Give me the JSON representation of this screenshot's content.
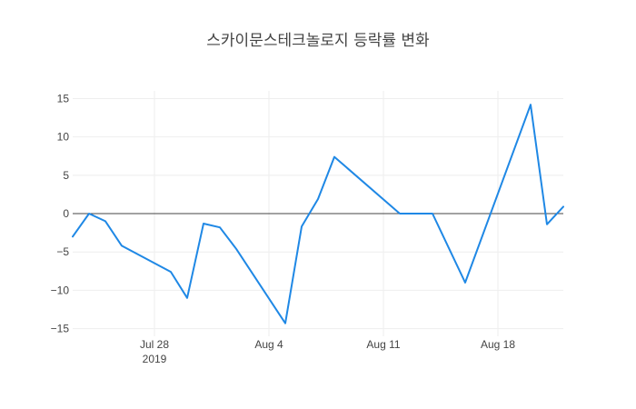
{
  "chart_data": {
    "type": "line",
    "title": "스카이문스테크놀로지 등락률 변화",
    "xlabel": "",
    "ylabel": "",
    "x": [
      "2019-07-23",
      "2019-07-24",
      "2019-07-25",
      "2019-07-26",
      "2019-07-29",
      "2019-07-30",
      "2019-07-31",
      "2019-08-01",
      "2019-08-02",
      "2019-08-05",
      "2019-08-06",
      "2019-08-07",
      "2019-08-08",
      "2019-08-12",
      "2019-08-14",
      "2019-08-16",
      "2019-08-20",
      "2019-08-21",
      "2019-08-22"
    ],
    "series": [
      {
        "color": "#1f88e5",
        "values": [
          -3.0,
          0.0,
          -1.0,
          -4.2,
          -7.6,
          -11.0,
          -1.3,
          -1.8,
          -4.6,
          -14.3,
          -1.7,
          1.9,
          7.4,
          0.0,
          0.0,
          -9.0,
          14.2,
          -1.4,
          0.9
        ]
      }
    ],
    "ylim": [
      -16,
      16
    ],
    "xlim": [
      "2019-07-23",
      "2019-08-22"
    ],
    "y_ticks": [
      -15,
      -10,
      -5,
      0,
      5,
      10,
      15
    ],
    "x_ticks": [
      {
        "date": "2019-07-28",
        "label": "Jul 28",
        "sublabel": "2019"
      },
      {
        "date": "2019-08-04",
        "label": "Aug 4",
        "sublabel": ""
      },
      {
        "date": "2019-08-11",
        "label": "Aug 11",
        "sublabel": ""
      },
      {
        "date": "2019-08-18",
        "label": "Aug 18",
        "sublabel": ""
      }
    ],
    "grid": true,
    "zero_line": true
  }
}
